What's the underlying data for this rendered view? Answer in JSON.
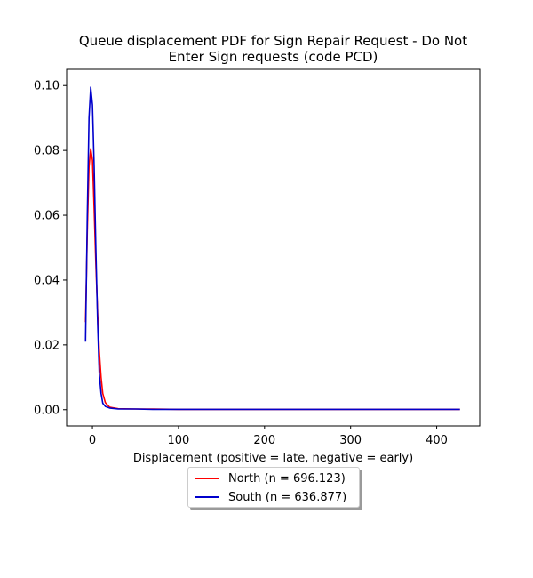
{
  "chart_data": {
    "type": "line",
    "title_lines": [
      "Queue displacement PDF for Sign Repair Request - Do Not",
      "Enter Sign  requests (code PCD)"
    ],
    "xlabel": "Displacement (positive = late, negative = early)",
    "ylabel": "",
    "xlim": [
      -30,
      450
    ],
    "ylim": [
      -0.005,
      0.105
    ],
    "xticks": [
      0,
      100,
      200,
      300,
      400
    ],
    "xtick_labels": [
      "0",
      "100",
      "200",
      "300",
      "400"
    ],
    "yticks": [
      0.0,
      0.02,
      0.04,
      0.06,
      0.08,
      0.1
    ],
    "ytick_labels": [
      "0.00",
      "0.02",
      "0.04",
      "0.06",
      "0.08",
      "0.10"
    ],
    "grid": false,
    "legend_position": "below",
    "series": [
      {
        "name": "North (n = 696.123)",
        "color": "#ff0000",
        "x": [
          -8,
          -6,
          -4,
          -2,
          0,
          2,
          4,
          6,
          8,
          10,
          12,
          15,
          20,
          30,
          50,
          70,
          100,
          150,
          200,
          250,
          300,
          350,
          400,
          427
        ],
        "y": [
          0.027,
          0.055,
          0.075,
          0.0805,
          0.077,
          0.062,
          0.045,
          0.03,
          0.018,
          0.01,
          0.005,
          0.0022,
          0.0008,
          0.0003,
          0.0002,
          0.0002,
          0.0001,
          0.0001,
          0.0001,
          0.0001,
          0.0001,
          0.0001,
          0.0001,
          0.0001
        ]
      },
      {
        "name": "South (n = 636.877)",
        "color": "#0000cc",
        "x": [
          -8,
          -6,
          -4,
          -2,
          0,
          2,
          4,
          6,
          8,
          10,
          12,
          15,
          20,
          30,
          50,
          70,
          100,
          150,
          200,
          250,
          300,
          350,
          400,
          427
        ],
        "y": [
          0.021,
          0.06,
          0.09,
          0.0995,
          0.094,
          0.075,
          0.05,
          0.027,
          0.011,
          0.005,
          0.002,
          0.001,
          0.0005,
          0.0002,
          0.0002,
          0.0001,
          0.0001,
          0.0001,
          0.0001,
          0.0001,
          0.0001,
          0.0001,
          0.0001,
          0.0001
        ]
      }
    ]
  }
}
